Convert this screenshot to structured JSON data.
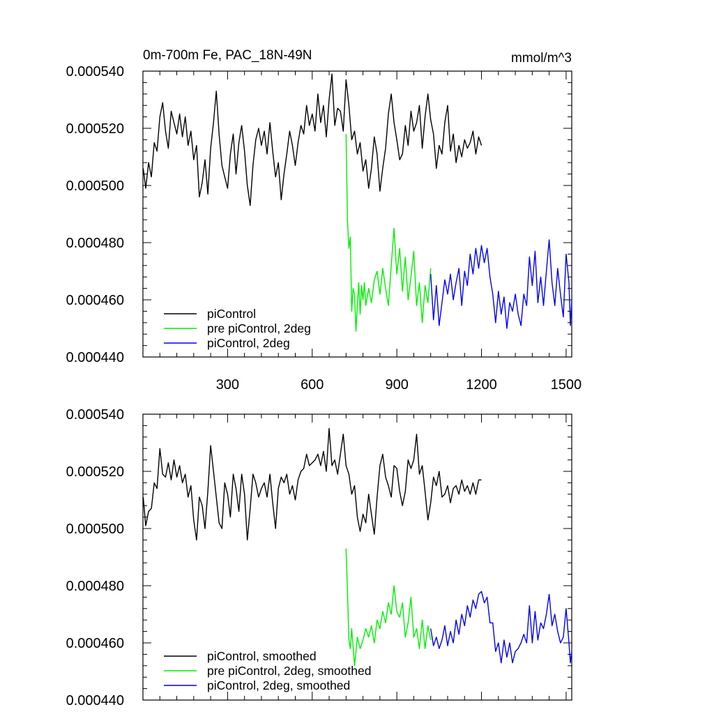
{
  "chart_data": [
    {
      "type": "line",
      "title": "0m-700m Fe, PAC_18N-49N",
      "units": "mmol/m^3",
      "xlim": [
        0,
        1520
      ],
      "ylim": [
        0.00044,
        0.00054
      ],
      "xticks": [
        300,
        600,
        900,
        1200,
        1500
      ],
      "yticks": [
        0.00044,
        0.00046,
        0.00048,
        0.0005,
        0.00052,
        0.00054
      ],
      "xtick_labels": [
        "300",
        "600",
        "900",
        "1200",
        "1500"
      ],
      "ytick_labels": [
        "0.000440",
        "0.000460",
        "0.000480",
        "0.000500",
        "0.000520",
        "0.000540"
      ],
      "legend": [
        "piControl",
        "pre piControl, 2deg",
        "piControl, 2deg"
      ],
      "legend_position": "bottom-left",
      "series": [
        {
          "name": "piControl",
          "color": "#000000",
          "x": [
            1,
            10,
            20,
            30,
            40,
            50,
            60,
            70,
            80,
            90,
            100,
            110,
            120,
            130,
            140,
            150,
            160,
            170,
            180,
            190,
            200,
            210,
            220,
            230,
            240,
            250,
            260,
            270,
            280,
            290,
            300,
            310,
            320,
            330,
            340,
            350,
            360,
            370,
            380,
            390,
            400,
            410,
            420,
            430,
            440,
            450,
            460,
            470,
            480,
            490,
            500,
            510,
            520,
            530,
            540,
            550,
            560,
            570,
            580,
            590,
            600,
            610,
            620,
            630,
            640,
            650,
            660,
            670,
            680,
            690,
            700,
            710,
            720,
            730,
            740,
            750,
            760,
            770,
            780,
            790,
            800,
            810,
            820,
            830,
            840,
            850,
            860,
            870,
            880,
            890,
            900,
            910,
            920,
            930,
            940,
            950,
            960,
            970,
            980,
            990,
            1000,
            1010,
            1020,
            1030,
            1040,
            1050,
            1060,
            1070,
            1080,
            1090,
            1100,
            1110,
            1120,
            1130,
            1140,
            1150,
            1160,
            1170,
            1180,
            1190,
            1200
          ],
          "y": [
            0.000506,
            0.000499,
            0.000508,
            0.000503,
            0.000515,
            0.000512,
            0.000524,
            0.000529,
            0.000519,
            0.000513,
            0.000526,
            0.000522,
            0.000518,
            0.000525,
            0.000517,
            0.000524,
            0.000514,
            0.000519,
            0.000509,
            0.000514,
            0.000496,
            0.000501,
            0.000509,
            0.000497,
            0.000513,
            0.000522,
            0.000533,
            0.000518,
            0.000507,
            0.000503,
            0.000499,
            0.000511,
            0.000518,
            0.000504,
            0.000515,
            0.000521,
            0.000512,
            0.0005,
            0.000493,
            0.000507,
            0.000516,
            0.00052,
            0.000514,
            0.000519,
            0.000511,
            0.000522,
            0.000512,
            0.000503,
            0.000508,
            0.000495,
            0.000504,
            0.000511,
            0.000519,
            0.000514,
            0.000507,
            0.000515,
            0.000521,
            0.000518,
            0.000528,
            0.000521,
            0.000525,
            0.000519,
            0.000532,
            0.000522,
            0.000528,
            0.000517,
            0.00053,
            0.000539,
            0.000521,
            0.000527,
            0.000526,
            0.000519,
            0.000537,
            0.000528,
            0.000516,
            0.000519,
            0.000511,
            0.000515,
            0.000505,
            0.000509,
            0.000499,
            0.000506,
            0.000517,
            0.000511,
            0.000498,
            0.000506,
            0.000513,
            0.000525,
            0.000532,
            0.000522,
            0.000516,
            0.000509,
            0.000511,
            0.000521,
            0.000514,
            0.000526,
            0.000519,
            0.000522,
            0.000528,
            0.000513,
            0.000524,
            0.000532,
            0.000523,
            0.000518,
            0.000506,
            0.000514,
            0.000511,
            0.000522,
            0.000528,
            0.000512,
            0.000518,
            0.000508,
            0.000514,
            0.00051,
            0.000516,
            0.000513,
            0.000515,
            0.000519,
            0.000511,
            0.000517,
            0.000514
          ]
        },
        {
          "name": "pre piControl, 2deg",
          "color": "#00ee00",
          "x": [
            720,
            725,
            730,
            735,
            740,
            745,
            750,
            755,
            760,
            765,
            770,
            775,
            780,
            785,
            790,
            800,
            810,
            820,
            830,
            840,
            850,
            860,
            870,
            880,
            890,
            900,
            910,
            920,
            930,
            940,
            950,
            960,
            970,
            980,
            990,
            1000,
            1010,
            1020
          ],
          "y": [
            0.000518,
            0.000488,
            0.000478,
            0.000482,
            0.000456,
            0.000464,
            0.000462,
            0.000449,
            0.000458,
            0.000466,
            0.000455,
            0.000465,
            0.00046,
            0.000466,
            0.000458,
            0.000464,
            0.000459,
            0.000467,
            0.00047,
            0.000462,
            0.000471,
            0.000464,
            0.000458,
            0.000472,
            0.000485,
            0.000469,
            0.000478,
            0.000463,
            0.000475,
            0.00046,
            0.000468,
            0.000477,
            0.000458,
            0.000466,
            0.000452,
            0.000465,
            0.000459,
            0.000471
          ]
        },
        {
          "name": "piControl, 2deg",
          "color": "#0000ee",
          "x": [
            1020,
            1030,
            1040,
            1050,
            1060,
            1070,
            1080,
            1090,
            1100,
            1110,
            1120,
            1130,
            1140,
            1150,
            1160,
            1170,
            1180,
            1190,
            1200,
            1210,
            1220,
            1230,
            1240,
            1250,
            1260,
            1270,
            1280,
            1290,
            1300,
            1310,
            1320,
            1330,
            1340,
            1350,
            1360,
            1370,
            1380,
            1390,
            1400,
            1410,
            1420,
            1430,
            1440,
            1450,
            1460,
            1470,
            1480,
            1490,
            1500,
            1510,
            1515,
            1520
          ],
          "y": [
            0.000469,
            0.000453,
            0.000465,
            0.000451,
            0.000459,
            0.000467,
            0.000462,
            0.000469,
            0.00046,
            0.000466,
            0.000471,
            0.000458,
            0.00047,
            0.000465,
            0.000476,
            0.000469,
            0.000478,
            0.000471,
            0.000479,
            0.000473,
            0.000478,
            0.000468,
            0.000462,
            0.000452,
            0.000463,
            0.000455,
            0.000461,
            0.00045,
            0.000459,
            0.000456,
            0.000462,
            0.000455,
            0.000451,
            0.000462,
            0.000458,
            0.000475,
            0.000465,
            0.000477,
            0.000459,
            0.000468,
            0.000458,
            0.00047,
            0.000481,
            0.000466,
            0.000458,
            0.000471,
            0.000462,
            0.000454,
            0.000476,
            0.000466,
            0.000451,
            0.00046
          ]
        }
      ]
    },
    {
      "type": "line",
      "title": "",
      "units": "",
      "xlim": [
        0,
        1520
      ],
      "ylim": [
        0.00044,
        0.00054
      ],
      "xticks": [
        300,
        600,
        900,
        1200,
        1500
      ],
      "yticks": [
        0.00044,
        0.00046,
        0.00048,
        0.0005,
        0.00052,
        0.00054
      ],
      "xtick_labels": [],
      "ytick_labels": [
        "0.000440",
        "0.000460",
        "0.000480",
        "0.000500",
        "0.000520",
        "0.000540"
      ],
      "legend": [
        "piControl, smoothed",
        "pre piControl, 2deg, smoothed",
        "piControl, 2deg, smoothed"
      ],
      "legend_position": "bottom-left",
      "series": [
        {
          "name": "piControl, smoothed",
          "color": "#000000",
          "x": [
            1,
            10,
            20,
            30,
            40,
            50,
            60,
            70,
            80,
            90,
            100,
            110,
            120,
            130,
            140,
            150,
            160,
            170,
            180,
            190,
            200,
            210,
            220,
            230,
            240,
            250,
            260,
            270,
            280,
            290,
            300,
            310,
            320,
            330,
            340,
            350,
            360,
            370,
            380,
            390,
            400,
            410,
            420,
            430,
            440,
            450,
            460,
            470,
            480,
            490,
            500,
            510,
            520,
            530,
            540,
            550,
            560,
            570,
            580,
            590,
            600,
            610,
            620,
            630,
            640,
            650,
            660,
            670,
            680,
            690,
            700,
            710,
            720,
            730,
            740,
            750,
            760,
            770,
            780,
            790,
            800,
            810,
            820,
            830,
            840,
            850,
            860,
            870,
            880,
            890,
            900,
            910,
            920,
            930,
            940,
            950,
            960,
            970,
            980,
            990,
            1000,
            1010,
            1020,
            1030,
            1040,
            1050,
            1060,
            1070,
            1080,
            1090,
            1100,
            1110,
            1120,
            1130,
            1140,
            1150,
            1160,
            1170,
            1180,
            1190,
            1200
          ],
          "y": [
            0.000511,
            0.000501,
            0.000506,
            0.000507,
            0.000516,
            0.000514,
            0.000528,
            0.000519,
            0.000518,
            0.000523,
            0.000517,
            0.000524,
            0.000518,
            0.000522,
            0.000516,
            0.000519,
            0.000511,
            0.000515,
            0.000503,
            0.000496,
            0.000511,
            0.000508,
            0.0005,
            0.000513,
            0.000529,
            0.00052,
            0.000511,
            0.000502,
            0.0005,
            0.000516,
            0.000512,
            0.000504,
            0.000519,
            0.000514,
            0.000506,
            0.000519,
            0.000512,
            0.000496,
            0.000507,
            0.000519,
            0.000516,
            0.000511,
            0.000514,
            0.000516,
            0.000511,
            0.000519,
            0.000509,
            0.0005,
            0.000514,
            0.000518,
            0.000516,
            0.000519,
            0.000512,
            0.000515,
            0.00051,
            0.000517,
            0.00052,
            0.000521,
            0.000526,
            0.000522,
            0.000523,
            0.000524,
            0.000526,
            0.000522,
            0.000527,
            0.00052,
            0.000535,
            0.000522,
            0.000524,
            0.000519,
            0.000526,
            0.000533,
            0.000522,
            0.000519,
            0.000512,
            0.000515,
            0.000504,
            0.000499,
            0.000505,
            0.000502,
            0.000512,
            0.000505,
            0.000498,
            0.000511,
            0.000522,
            0.000526,
            0.000518,
            0.000515,
            0.000511,
            0.000522,
            0.000521,
            0.000513,
            0.000508,
            0.000513,
            0.000524,
            0.000521,
            0.000524,
            0.000533,
            0.000519,
            0.000522,
            0.000513,
            0.000503,
            0.000509,
            0.000518,
            0.000515,
            0.00052,
            0.000511,
            0.000512,
            0.000515,
            0.000509,
            0.000514,
            0.000515,
            0.000512,
            0.000517,
            0.000513,
            0.000515,
            0.000512,
            0.000516,
            0.000512,
            0.000517,
            0.000517
          ]
        },
        {
          "name": "pre piControl, 2deg, smoothed",
          "color": "#00ee00",
          "x": [
            720,
            725,
            730,
            735,
            740,
            750,
            760,
            770,
            780,
            790,
            800,
            810,
            820,
            830,
            840,
            850,
            860,
            870,
            880,
            890,
            900,
            910,
            920,
            930,
            940,
            950,
            960,
            970,
            980,
            990,
            1000,
            1010,
            1020
          ],
          "y": [
            0.000493,
            0.000478,
            0.000461,
            0.000458,
            0.000465,
            0.000452,
            0.000462,
            0.000458,
            0.000461,
            0.000465,
            0.000462,
            0.000466,
            0.00046,
            0.000468,
            0.000465,
            0.000471,
            0.000467,
            0.000474,
            0.00047,
            0.00048,
            0.000471,
            0.000469,
            0.000474,
            0.000462,
            0.000467,
            0.000476,
            0.000462,
            0.000465,
            0.000458,
            0.000468,
            0.000458,
            0.000466,
            0.000461
          ]
        },
        {
          "name": "piControl, 2deg, smoothed",
          "color": "#0000ee",
          "x": [
            1020,
            1030,
            1040,
            1050,
            1060,
            1070,
            1080,
            1090,
            1100,
            1110,
            1120,
            1130,
            1140,
            1150,
            1160,
            1170,
            1180,
            1190,
            1200,
            1210,
            1220,
            1230,
            1240,
            1250,
            1260,
            1270,
            1280,
            1290,
            1300,
            1310,
            1320,
            1330,
            1340,
            1350,
            1360,
            1370,
            1380,
            1390,
            1400,
            1410,
            1420,
            1430,
            1440,
            1450,
            1460,
            1470,
            1480,
            1490,
            1500,
            1510,
            1515,
            1520
          ],
          "y": [
            0.000465,
            0.000459,
            0.000462,
            0.000458,
            0.000461,
            0.000466,
            0.000459,
            0.000464,
            0.00046,
            0.000468,
            0.000463,
            0.00047,
            0.000466,
            0.000473,
            0.000469,
            0.000475,
            0.000472,
            0.000477,
            0.000478,
            0.000474,
            0.000476,
            0.000467,
            0.000467,
            0.000457,
            0.00046,
            0.000453,
            0.000461,
            0.000455,
            0.00046,
            0.000453,
            0.000457,
            0.000458,
            0.00046,
            0.000463,
            0.00046,
            0.000473,
            0.00046,
            0.000471,
            0.000461,
            0.000467,
            0.000465,
            0.00047,
            0.000477,
            0.000466,
            0.00047,
            0.000464,
            0.00046,
            0.000462,
            0.000472,
            0.00046,
            0.000453,
            0.000457
          ]
        }
      ]
    }
  ]
}
